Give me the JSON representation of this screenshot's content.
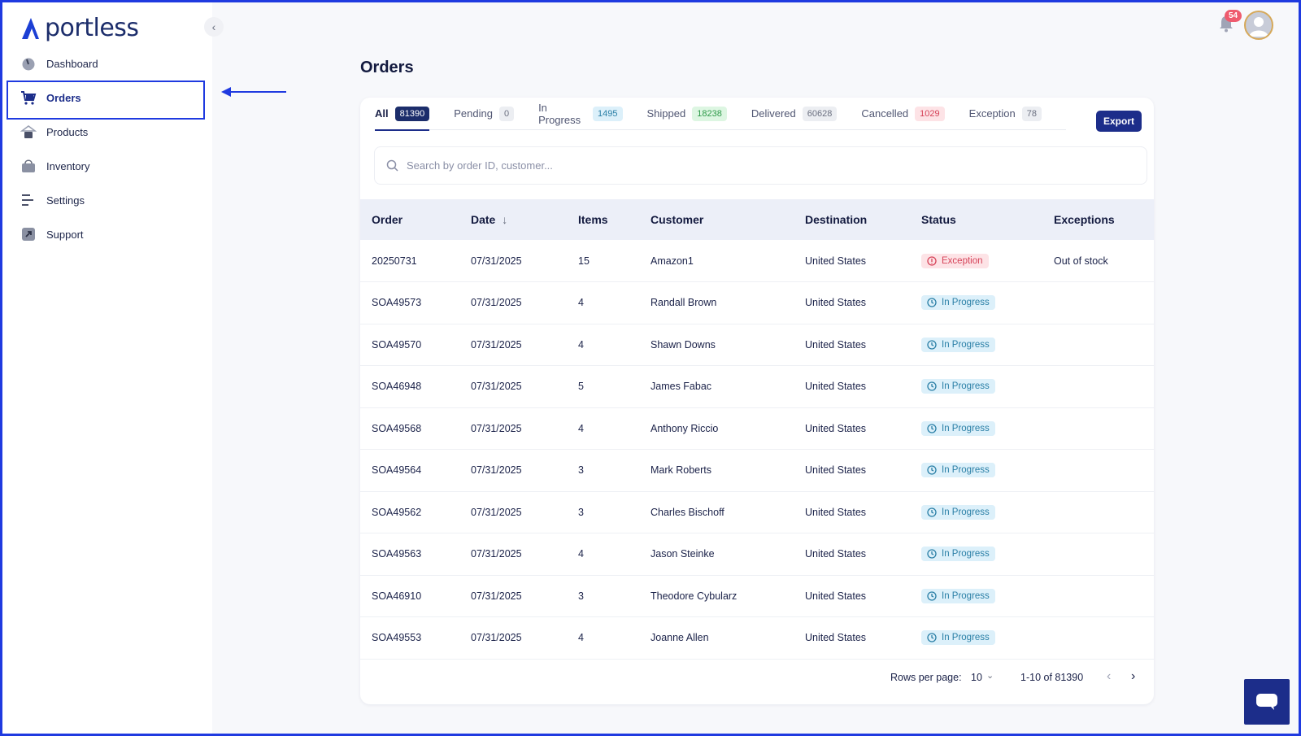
{
  "app": {
    "brand": "portless"
  },
  "sidebar": {
    "items": [
      {
        "label": "Dashboard",
        "icon": "gauge-icon"
      },
      {
        "label": "Orders",
        "icon": "cart-icon"
      },
      {
        "label": "Products",
        "icon": "hanger-icon"
      },
      {
        "label": "Inventory",
        "icon": "bag-icon"
      },
      {
        "label": "Settings",
        "icon": "sliders-icon"
      },
      {
        "label": "Support",
        "icon": "external-link-icon"
      }
    ],
    "active": "Orders"
  },
  "header": {
    "notifications": "54"
  },
  "main": {
    "title": "Orders",
    "tabs": [
      {
        "label": "All",
        "count": "81390"
      },
      {
        "label": "Pending",
        "count": "0"
      },
      {
        "label": "In Progress",
        "count": "1495"
      },
      {
        "label": "Shipped",
        "count": "18238"
      },
      {
        "label": "Delivered",
        "count": "60628"
      },
      {
        "label": "Cancelled",
        "count": "1029"
      },
      {
        "label": "Exception",
        "count": "78"
      }
    ],
    "export_label": "Export",
    "search_placeholder": "Search by order ID, customer...",
    "columns": [
      "Order",
      "Date",
      "Items",
      "Customer",
      "Destination",
      "Status",
      "Exceptions"
    ],
    "rows": [
      {
        "order": "20250731",
        "date": "07/31/2025",
        "items": "15",
        "customer": "Amazon1",
        "destination": "United States",
        "status": "Exception",
        "exception": "Out of stock"
      },
      {
        "order": "SOA49573",
        "date": "07/31/2025",
        "items": "4",
        "customer": "Randall Brown",
        "destination": "United States",
        "status": "In Progress",
        "exception": ""
      },
      {
        "order": "SOA49570",
        "date": "07/31/2025",
        "items": "4",
        "customer": "Shawn Downs",
        "destination": "United States",
        "status": "In Progress",
        "exception": ""
      },
      {
        "order": "SOA46948",
        "date": "07/31/2025",
        "items": "5",
        "customer": "James Fabac",
        "destination": "United States",
        "status": "In Progress",
        "exception": ""
      },
      {
        "order": "SOA49568",
        "date": "07/31/2025",
        "items": "4",
        "customer": "Anthony Riccio",
        "destination": "United States",
        "status": "In Progress",
        "exception": ""
      },
      {
        "order": "SOA49564",
        "date": "07/31/2025",
        "items": "3",
        "customer": "Mark Roberts",
        "destination": "United States",
        "status": "In Progress",
        "exception": ""
      },
      {
        "order": "SOA49562",
        "date": "07/31/2025",
        "items": "3",
        "customer": "Charles Bischoff",
        "destination": "United States",
        "status": "In Progress",
        "exception": ""
      },
      {
        "order": "SOA49563",
        "date": "07/31/2025",
        "items": "4",
        "customer": "Jason Steinke",
        "destination": "United States",
        "status": "In Progress",
        "exception": ""
      },
      {
        "order": "SOA46910",
        "date": "07/31/2025",
        "items": "3",
        "customer": "Theodore Cybularz",
        "destination": "United States",
        "status": "In Progress",
        "exception": ""
      },
      {
        "order": "SOA49553",
        "date": "07/31/2025",
        "items": "4",
        "customer": "Joanne Allen",
        "destination": "United States",
        "status": "In Progress",
        "exception": ""
      }
    ],
    "pagination": {
      "rows_per_page_label": "Rows per page:",
      "rows_per_page": "10",
      "range": "1-10 of 81390"
    }
  },
  "colors": {
    "accent": "#1c2d8a",
    "highlight": "#1f3ae0"
  }
}
